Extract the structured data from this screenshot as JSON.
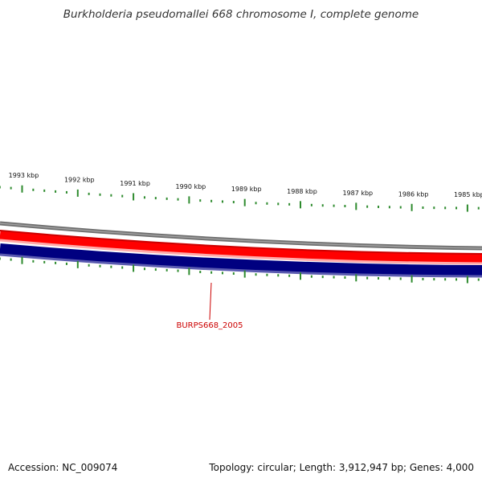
{
  "title": "Burkholderia pseudomallei 668 chromosome I, complete genome",
  "accession": "Accession: NC_009074",
  "topology": "Topology: circular; Length: 3,912,947 bp; Genes: 4,000",
  "kbp_labels": [
    "1993 kbp",
    "1992 kbp",
    "1991 kbp",
    "1990 kbp",
    "1989 kbp",
    "1988 kbp",
    "1987 kbp",
    "1986 kbp",
    "1985 kbp"
  ],
  "gene_label": "BURPS668_2005",
  "colors": {
    "tick": "#2e8b2e",
    "forward_strand": "#ff0000",
    "reverse_strand": "#000080",
    "backbone": "#808080",
    "gene_label": "#cc0000"
  }
}
